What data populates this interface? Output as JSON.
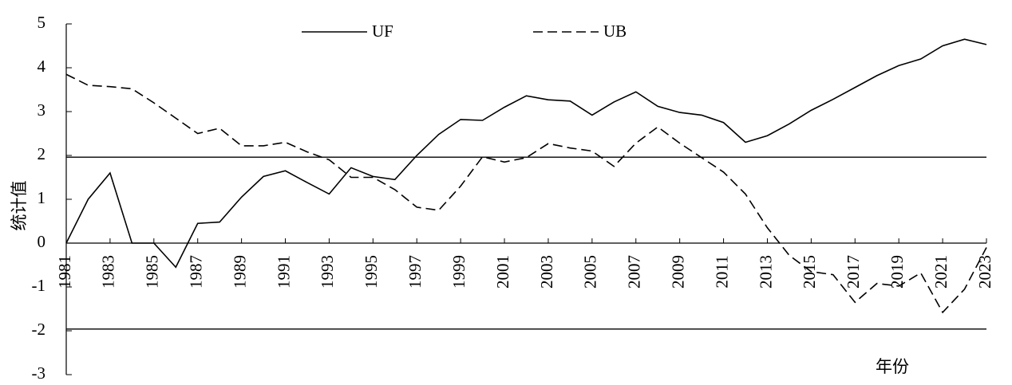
{
  "chart_data": {
    "type": "line",
    "x_label": "年份",
    "y_label": "统计值",
    "x": [
      1981,
      1982,
      1983,
      1984,
      1985,
      1986,
      1987,
      1988,
      1989,
      1990,
      1991,
      1992,
      1993,
      1994,
      1995,
      1996,
      1997,
      1998,
      1999,
      2000,
      2001,
      2002,
      2003,
      2004,
      2005,
      2006,
      2007,
      2008,
      2009,
      2010,
      2011,
      2012,
      2013,
      2014,
      2015,
      2016,
      2017,
      2018,
      2019,
      2020,
      2021,
      2022,
      2023
    ],
    "series": [
      {
        "name": "UF",
        "color": "#000000",
        "dash": false,
        "values": [
          0,
          1.0,
          1.6,
          0,
          0,
          -0.55,
          0.45,
          0.48,
          1.05,
          1.52,
          1.65,
          1.38,
          1.12,
          1.72,
          1.52,
          1.45,
          2.0,
          2.48,
          2.82,
          2.8,
          3.1,
          3.36,
          3.27,
          3.24,
          2.92,
          3.22,
          3.45,
          3.12,
          2.98,
          2.92,
          2.75,
          2.3,
          2.45,
          2.72,
          3.03,
          3.28,
          3.55,
          3.82,
          4.05,
          4.2,
          4.5,
          4.65,
          4.53
        ]
      },
      {
        "name": "UB",
        "color": "#000000",
        "dash": true,
        "values": [
          3.85,
          3.6,
          3.57,
          3.52,
          3.2,
          2.85,
          2.5,
          2.62,
          2.22,
          2.22,
          2.3,
          2.08,
          1.9,
          1.5,
          1.5,
          1.22,
          0.82,
          0.75,
          1.3,
          1.97,
          1.85,
          1.95,
          2.27,
          2.17,
          2.1,
          1.75,
          2.28,
          2.65,
          2.28,
          1.95,
          1.62,
          1.12,
          0.35,
          -0.28,
          -0.65,
          -0.72,
          -1.35,
          -0.92,
          -0.98,
          -0.68,
          -1.58,
          -1.05,
          -0.1
        ]
      }
    ],
    "reference_lines": [
      1.96,
      -1.96
    ],
    "xlim": [
      1981,
      2023
    ],
    "xticks": [
      1981,
      1983,
      1985,
      1987,
      1989,
      1991,
      1993,
      1995,
      1997,
      1999,
      2001,
      2003,
      2005,
      2007,
      2009,
      2011,
      2013,
      2015,
      2017,
      2019,
      2021,
      2023
    ],
    "ylim": [
      -3,
      5
    ],
    "yticks": [
      -3,
      -2,
      -1,
      0,
      1,
      2,
      3,
      4,
      5
    ]
  }
}
